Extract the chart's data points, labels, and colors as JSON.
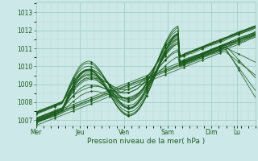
{
  "title": "Pression niveau de la mer( hPa )",
  "bg_color": "#cce8e8",
  "grid_major_color": "#99ccbb",
  "grid_minor_color": "#bbddcc",
  "line_color": "#1a5c1a",
  "ylim": [
    1006.7,
    1013.6
  ],
  "yticks": [
    1007,
    1008,
    1009,
    1010,
    1011,
    1012,
    1013
  ],
  "day_labels": [
    "Mer",
    "Jeu",
    "Ven",
    "Sam",
    "Dim",
    "Lu"
  ],
  "day_positions": [
    0,
    0.2,
    0.4,
    0.6,
    0.8,
    0.917
  ],
  "num_points": 120,
  "total_days": 5
}
